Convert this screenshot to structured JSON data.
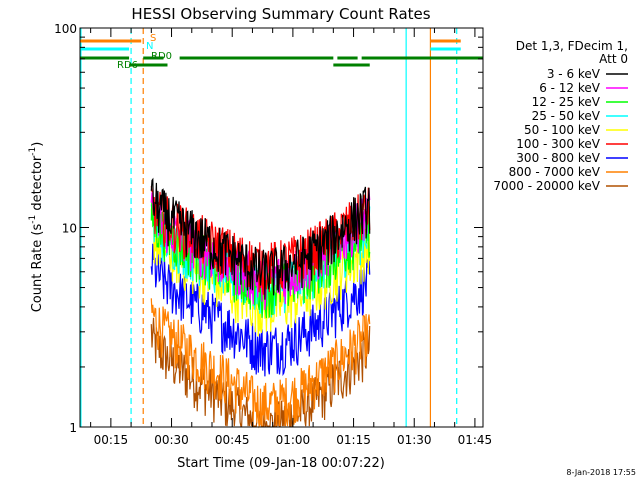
{
  "chart_data": {
    "type": "line",
    "title": "HESSI Observing Summary Count Rates",
    "xlabel": "Start Time (09-Jan-18 00:07:22)",
    "ylabel_parts": [
      "Count Rate (s",
      "-1",
      " detector",
      "-1",
      ")"
    ],
    "y_scale": "log",
    "ylim": [
      1,
      100
    ],
    "y_ticks": [
      {
        "v": 1,
        "label": "1"
      },
      {
        "v": 10,
        "label": "10"
      },
      {
        "v": 100,
        "label": "100"
      }
    ],
    "x_range_minutes": [
      7.37,
      107.0
    ],
    "x_ticks": [
      {
        "v": 15,
        "label": "00:15"
      },
      {
        "v": 30,
        "label": "00:30"
      },
      {
        "v": 45,
        "label": "00:45"
      },
      {
        "v": 60,
        "label": "01:00"
      },
      {
        "v": 75,
        "label": "01:15"
      },
      {
        "v": 90,
        "label": "01:30"
      },
      {
        "v": 105,
        "label": "01:45"
      }
    ],
    "legend_header": [
      "Det 1,3, FDecim 1,",
      "Att 0"
    ],
    "series": [
      {
        "name": "3 - 6 keV",
        "color": "#000000"
      },
      {
        "name": "6 - 12 keV",
        "color": "#ff00ff"
      },
      {
        "name": "12 - 25 keV",
        "color": "#00ff00"
      },
      {
        "name": "25 - 50 keV",
        "color": "#00ffff"
      },
      {
        "name": "50 - 100 keV",
        "color": "#ffff00"
      },
      {
        "name": "100 - 300 keV",
        "color": "#ff0000"
      },
      {
        "name": "300 - 800 keV",
        "color": "#0000ff"
      },
      {
        "name": "800 - 7000 keV",
        "color": "#ff8000"
      },
      {
        "name": "7000 - 20000 keV",
        "color": "#b05000"
      }
    ],
    "data_span_minutes": [
      25.0,
      79.0
    ],
    "series_profiles": [
      {
        "series": "3 - 6 keV",
        "start": 15.0,
        "min": 6.0,
        "end": 13.0
      },
      {
        "series": "6 - 12 keV",
        "start": 13.0,
        "min": 5.5,
        "end": 12.0
      },
      {
        "series": "12 - 25 keV",
        "start": 12.0,
        "min": 5.0,
        "end": 10.0
      },
      {
        "series": "25 - 50 keV",
        "start": 11.5,
        "min": 5.0,
        "end": 10.0
      },
      {
        "series": "50 - 100 keV",
        "start": 10.0,
        "min": 4.0,
        "end": 8.0
      },
      {
        "series": "100 - 300 keV",
        "start": 14.0,
        "min": 6.5,
        "end": 12.5
      },
      {
        "series": "300 - 800 keV",
        "start": 7.0,
        "min": 2.5,
        "end": 5.5
      },
      {
        "series": "800 - 7000 keV",
        "start": 4.0,
        "min": 1.3,
        "end": 3.0
      },
      {
        "series": "7000 - 20000 keV",
        "start": 3.0,
        "min": 1.0,
        "end": 2.5
      }
    ],
    "flags": [
      {
        "label": "S",
        "color": "#ff8000",
        "segments": [
          [
            7.37,
            22.5
          ],
          [
            94.0,
            101.5
          ]
        ]
      },
      {
        "label": "N",
        "color": "#00ffff",
        "segments": [
          [
            7.37,
            19.5
          ],
          [
            94.0,
            101.5
          ]
        ]
      },
      {
        "label": "RD0",
        "color": "#008000",
        "segments": [
          [
            7.37,
            19.5
          ],
          [
            23.0,
            28.0
          ],
          [
            32.0,
            70.0
          ],
          [
            71.0,
            76.0
          ],
          [
            77.0,
            107.0
          ]
        ]
      },
      {
        "label": "RD6",
        "color": "#008000",
        "segments": [
          [
            19.5,
            29.0
          ],
          [
            70.0,
            79.0
          ]
        ]
      }
    ],
    "vertical_markers": [
      {
        "v": 7.6,
        "color": "#00ffff",
        "style": "solid"
      },
      {
        "v": 20.0,
        "color": "#00ffff",
        "style": "dashed"
      },
      {
        "v": 23.0,
        "color": "#ff8000",
        "style": "dashed"
      },
      {
        "v": 88.0,
        "color": "#00ffff",
        "style": "solid"
      },
      {
        "v": 94.0,
        "color": "#ff8000",
        "style": "solid"
      },
      {
        "v": 100.5,
        "color": "#00ffff",
        "style": "dashed"
      }
    ],
    "footer_timestamp": "8-Jan-2018 17:55"
  }
}
